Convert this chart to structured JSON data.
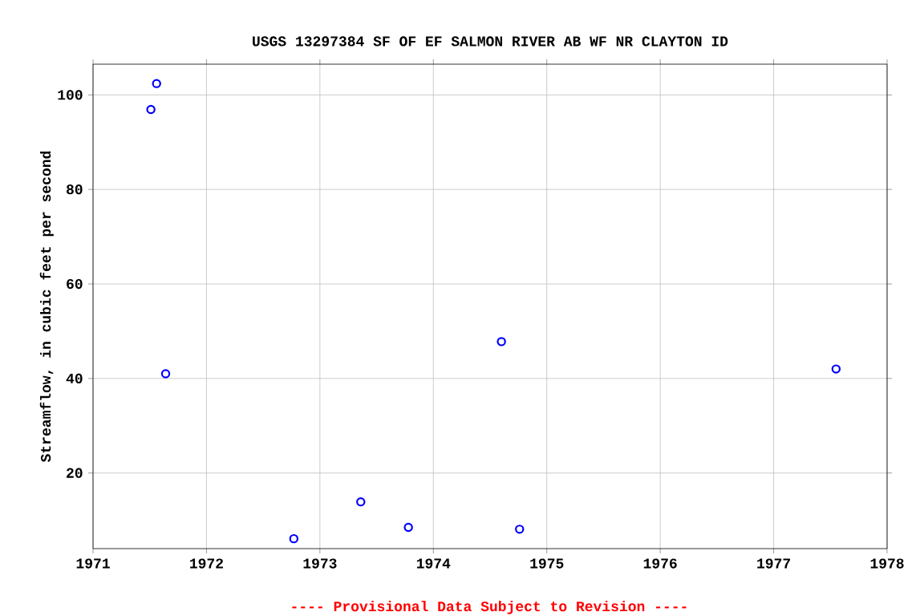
{
  "chart_data": {
    "type": "scatter",
    "title": "USGS 13297384 SF OF EF SALMON RIVER AB WF NR CLAYTON ID",
    "ylabel": "Streamflow, in cubic feet per second",
    "annotations": [
      "---- Provisional Data Subject to Revision ----"
    ],
    "series": [
      {
        "color": "#0000ff",
        "x": [
          1971.51,
          1971.56,
          1971.64,
          1972.77,
          1973.36,
          1973.78,
          1974.6,
          1974.76,
          1977.55
        ],
        "values": [
          96.9,
          102.4,
          41.0,
          6.1,
          13.9,
          8.5,
          47.8,
          8.1,
          42.0
        ]
      }
    ],
    "xlim": [
      1971,
      1978
    ],
    "xticks": [
      1971,
      1972,
      1973,
      1974,
      1975,
      1976,
      1977,
      1978
    ],
    "ylim": [
      4,
      106.5
    ],
    "yticks": [
      20,
      40,
      60,
      80,
      100
    ],
    "grid": true,
    "marker": "circle"
  }
}
